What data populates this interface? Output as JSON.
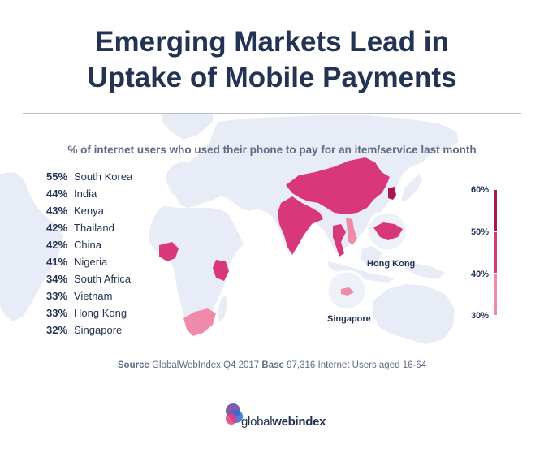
{
  "title_line1": "Emerging Markets Lead in",
  "title_line2": "Uptake of Mobile Payments",
  "subtitle": "% of internet users who used their phone to pay for an item/service last month",
  "stats": [
    {
      "pct": "55%",
      "country": "South Korea"
    },
    {
      "pct": "44%",
      "country": "India"
    },
    {
      "pct": "43%",
      "country": "Kenya"
    },
    {
      "pct": "42%",
      "country": "Thailand"
    },
    {
      "pct": "42%",
      "country": "China"
    },
    {
      "pct": "41%",
      "country": "Nigeria"
    },
    {
      "pct": "34%",
      "country": "South Africa"
    },
    {
      "pct": "33%",
      "country": "Vietnam"
    },
    {
      "pct": "33%",
      "country": "Hong Kong"
    },
    {
      "pct": "32%",
      "country": "Singapore"
    }
  ],
  "legend": {
    "labels": [
      "60%",
      "50%",
      "40%",
      "30%"
    ],
    "colors": {
      "high": "#a8174f",
      "mid": "#d8387a",
      "low": "#f08aaa"
    }
  },
  "callouts": {
    "hong_kong": "Hong Kong",
    "singapore": "Singapore"
  },
  "source": {
    "source_label": "Source",
    "source_text": "GlobalWebIndex Q4 2017",
    "base_label": "Base",
    "base_text": "97,316 Internet Users aged 16-64"
  },
  "logo": {
    "part1": "global",
    "part2": "webindex"
  },
  "colors": {
    "land": "#e8ecf6",
    "land_dark": "#dde2ef",
    "title": "#243352",
    "muted": "#5f6b86"
  }
}
